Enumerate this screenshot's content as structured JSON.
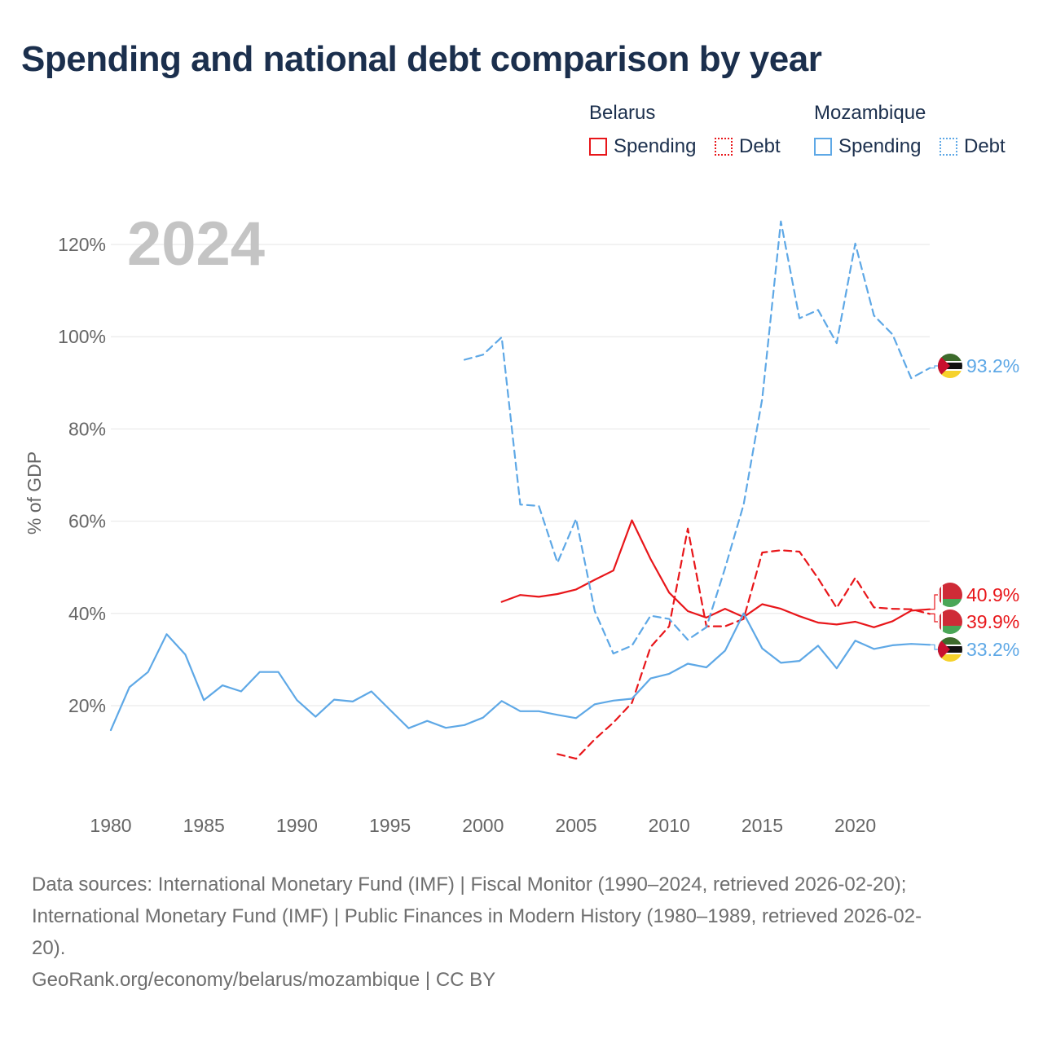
{
  "title": "Spending and national debt comparison by year",
  "legend": {
    "groups": [
      {
        "name": "Belarus",
        "color": "#e8161a",
        "items": [
          {
            "label": "Spending",
            "style": "solid"
          },
          {
            "label": "Debt",
            "style": "dotted"
          }
        ]
      },
      {
        "name": "Mozambique",
        "color": "#5ea8e6",
        "items": [
          {
            "label": "Spending",
            "style": "solid"
          },
          {
            "label": "Debt",
            "style": "dotted"
          }
        ]
      }
    ]
  },
  "year_label": "2024",
  "source": {
    "line1": "Data sources: International Monetary Fund (IMF) | Fiscal Monitor (1990–2024, retrieved 2026-02-20);",
    "line2": "International Monetary Fund (IMF) | Public Finances in Modern History (1980–1989, retrieved 2026-02-",
    "line3": "20).",
    "credit": "GeoRank.org/economy/belarus/mozambique | CC BY"
  },
  "colors": {
    "belarus": "#e8161a",
    "mozambique": "#5ea8e6",
    "grid": "#e6e6e6",
    "axis_text": "#666666",
    "year_label": "#c4c4c4"
  },
  "chart_data": {
    "type": "line",
    "title": "Spending and national debt comparison by year",
    "xlabel": "",
    "ylabel": "% of GDP",
    "xlim": [
      1980,
      2024
    ],
    "ylim": [
      0,
      125
    ],
    "x_ticks": [
      1980,
      1985,
      1990,
      1995,
      2000,
      2005,
      2010,
      2015,
      2020
    ],
    "y_ticks": [
      20,
      40,
      60,
      80,
      100,
      120
    ],
    "y_tick_labels": [
      "20%",
      "40%",
      "60%",
      "80%",
      "100%",
      "120%"
    ],
    "grid": true,
    "series": [
      {
        "name": "Belarus Spending",
        "country": "Belarus",
        "metric": "Spending",
        "color": "#e8161a",
        "dash": "solid",
        "x": [
          2001,
          2002,
          2003,
          2004,
          2005,
          2006,
          2007,
          2008,
          2009,
          2010,
          2011,
          2012,
          2013,
          2014,
          2015,
          2016,
          2017,
          2018,
          2019,
          2020,
          2021,
          2022,
          2023,
          2024
        ],
        "values": [
          42.5,
          44,
          43.6,
          44.2,
          45.2,
          47.3,
          49.3,
          60.2,
          51.8,
          44.5,
          40.5,
          39.1,
          41,
          39.2,
          42,
          41,
          39.4,
          38,
          37.6,
          38.2,
          37,
          38.3,
          40.6,
          40.9
        ],
        "end_label": "40.9%"
      },
      {
        "name": "Belarus Debt",
        "country": "Belarus",
        "metric": "Debt",
        "color": "#e8161a",
        "dash": "dashed",
        "x": [
          2004,
          2005,
          2006,
          2007,
          2008,
          2009,
          2010,
          2011,
          2012,
          2013,
          2014,
          2015,
          2016,
          2017,
          2018,
          2019,
          2020,
          2021,
          2022,
          2023,
          2024
        ],
        "values": [
          9.5,
          8.5,
          12.7,
          16.3,
          20.6,
          32.7,
          37.2,
          58.4,
          37.2,
          37.2,
          38.8,
          53.2,
          53.7,
          53.4,
          47.6,
          41.2,
          47.7,
          41.3,
          41.0,
          40.9,
          39.9
        ],
        "end_label": "39.9%"
      },
      {
        "name": "Mozambique Spending",
        "country": "Mozambique",
        "metric": "Spending",
        "color": "#5ea8e6",
        "dash": "solid",
        "x": [
          1980,
          1981,
          1982,
          1983,
          1984,
          1985,
          1986,
          1987,
          1988,
          1989,
          1990,
          1991,
          1992,
          1993,
          1994,
          1995,
          1996,
          1997,
          1998,
          1999,
          2000,
          2001,
          2002,
          2003,
          2004,
          2005,
          2006,
          2007,
          2008,
          2009,
          2010,
          2011,
          2012,
          2013,
          2014,
          2015,
          2016,
          2017,
          2018,
          2019,
          2020,
          2021,
          2022,
          2023,
          2024
        ],
        "values": [
          14.7,
          24,
          27.3,
          35.5,
          31.1,
          21.2,
          24.4,
          23.1,
          27.3,
          27.3,
          21.2,
          17.6,
          21.3,
          20.9,
          23.1,
          19.1,
          15.1,
          16.7,
          15.2,
          15.8,
          17.4,
          21,
          18.8,
          18.8,
          18,
          17.3,
          20.3,
          21.1,
          21.5,
          25.9,
          26.9,
          29.1,
          28.3,
          31.9,
          40,
          32.4,
          29.3,
          29.7,
          33,
          28.1,
          34.1,
          32.3,
          33.1,
          33.4,
          33.2
        ],
        "end_label": "33.2%"
      },
      {
        "name": "Mozambique Debt",
        "country": "Mozambique",
        "metric": "Debt",
        "color": "#5ea8e6",
        "dash": "dashed",
        "x": [
          1999,
          2000,
          2001,
          2002,
          2003,
          2004,
          2005,
          2006,
          2007,
          2008,
          2009,
          2010,
          2011,
          2012,
          2013,
          2014,
          2015,
          2016,
          2017,
          2018,
          2019,
          2020,
          2021,
          2022,
          2023,
          2024
        ],
        "values": [
          95,
          96.1,
          99.9,
          63.6,
          63.3,
          51,
          60.5,
          40.5,
          31.3,
          33,
          39.5,
          38.8,
          34.3,
          37,
          49.8,
          63.6,
          86.5,
          125,
          104,
          105.8,
          98.6,
          120.2,
          104.6,
          100.5,
          91,
          93.2
        ],
        "end_label": "93.2%"
      }
    ]
  }
}
